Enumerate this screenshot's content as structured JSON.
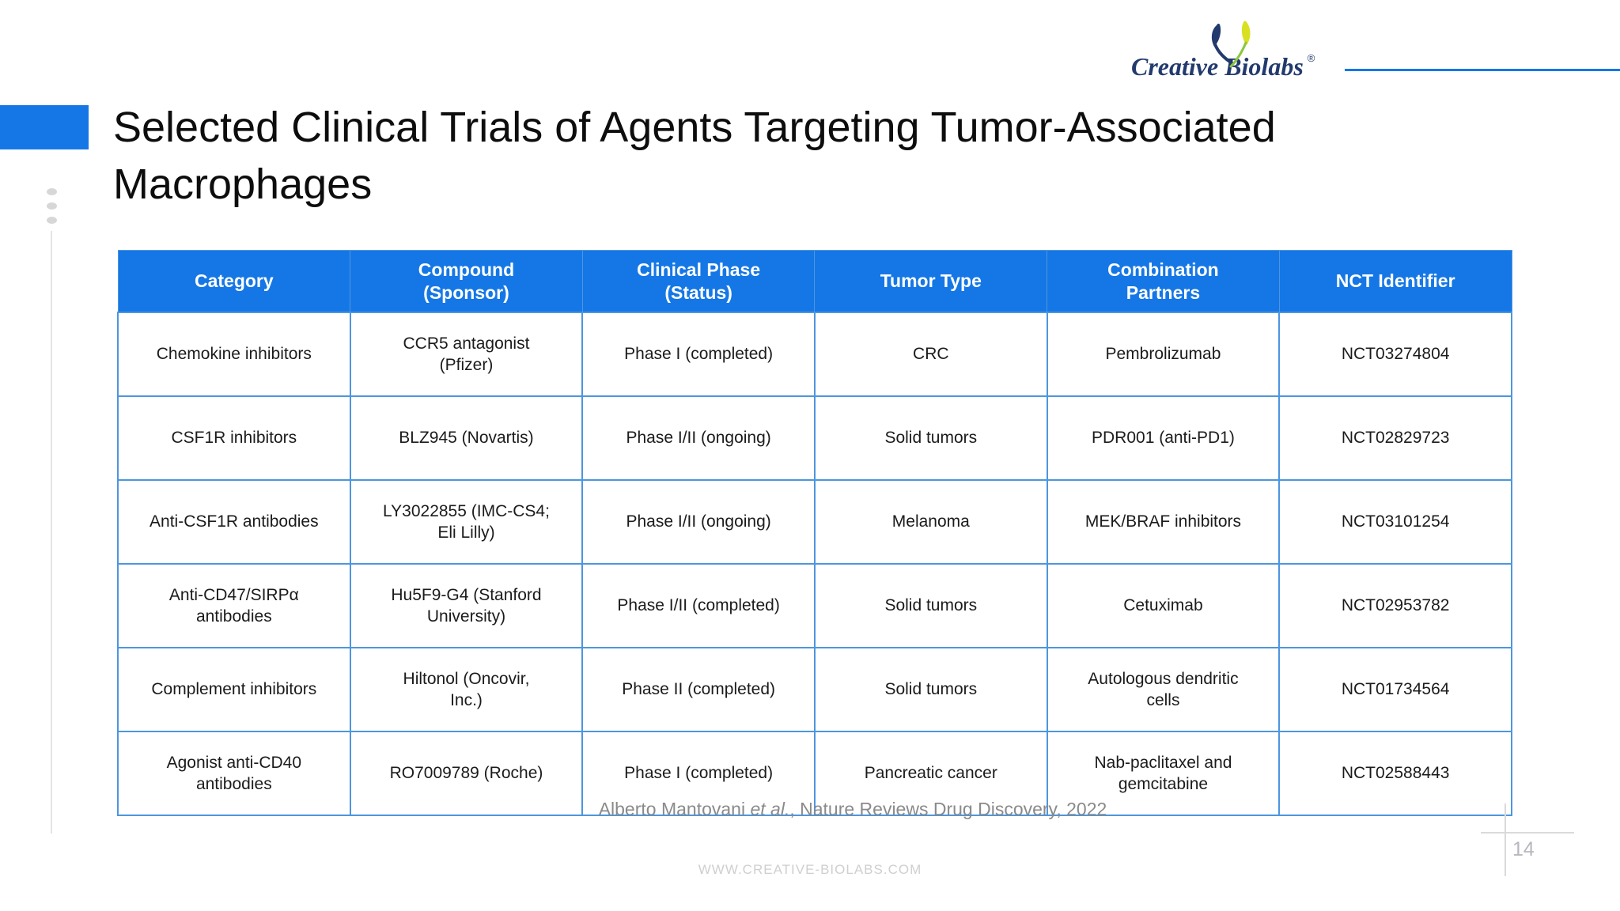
{
  "logo": {
    "brand": "Creative Biolabs",
    "registered": "®"
  },
  "title": "Selected Clinical Trials of Agents Targeting Tumor-Associated Macrophages",
  "table": {
    "headers": [
      "Category",
      "Compound\n(Sponsor)",
      "Clinical Phase\n(Status)",
      "Tumor Type",
      "Combination\nPartners",
      "NCT Identifier"
    ],
    "rows": [
      [
        "Chemokine inhibitors",
        "CCR5 antagonist\n(Pfizer)",
        "Phase I (completed)",
        "CRC",
        "Pembrolizumab",
        "NCT03274804"
      ],
      [
        "CSF1R inhibitors",
        "BLZ945 (Novartis)",
        "Phase I/II (ongoing)",
        "Solid tumors",
        "PDR001 (anti-PD1)",
        "NCT02829723"
      ],
      [
        "Anti-CSF1R antibodies",
        "LY3022855 (IMC-CS4;\nEli Lilly)",
        "Phase I/II (ongoing)",
        "Melanoma",
        "MEK/BRAF inhibitors",
        "NCT03101254"
      ],
      [
        "Anti-CD47/SIRPα\nantibodies",
        "Hu5F9-G4 (Stanford\nUniversity)",
        "Phase I/II (completed)",
        "Solid tumors",
        "Cetuximab",
        "NCT02953782"
      ],
      [
        "Complement inhibitors",
        "Hiltonol (Oncovir,\nInc.)",
        "Phase II (completed)",
        "Solid tumors",
        "Autologous dendritic\ncells",
        "NCT01734564"
      ],
      [
        "Agonist anti-CD40\nantibodies",
        "RO7009789 (Roche)",
        "Phase I (completed)",
        "Pancreatic cancer",
        "Nab-paclitaxel and\ngemcitabine",
        "NCT02588443"
      ]
    ]
  },
  "citation": {
    "authors": "Alberto Mantovani ",
    "et_al": "et al.",
    "source": ", Nature Reviews Drug Discovery, 2022"
  },
  "footer": {
    "website": "WWW.CREATIVE-BIOLABS.COM",
    "page_number": "14"
  },
  "colors": {
    "accent_blue": "#1577e6",
    "table_border": "#4d96df",
    "logo_navy": "#223a6d",
    "leaf_yellow": "#d9e021",
    "leaf_green": "#8cc63f"
  }
}
